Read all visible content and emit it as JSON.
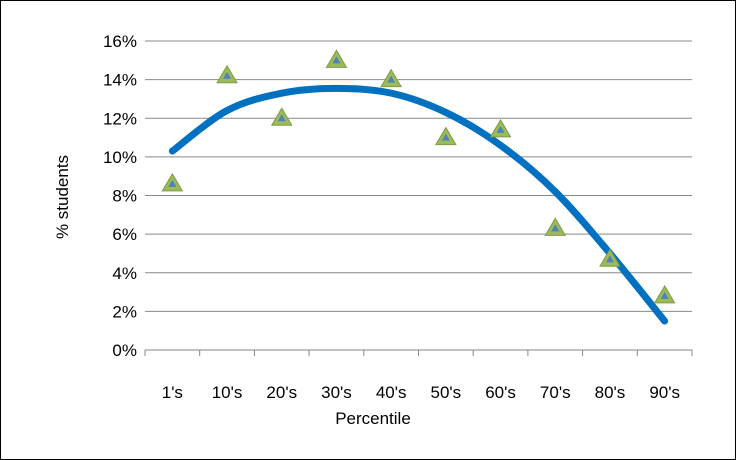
{
  "chart_data": {
    "type": "scatter",
    "title": "",
    "xlabel": "Percentile",
    "ylabel": "% students",
    "categories": [
      "1's",
      "10's",
      "20's",
      "30's",
      "40's",
      "50's",
      "60's",
      "70's",
      "80's",
      "90's"
    ],
    "ylim": [
      0,
      16
    ],
    "yticks": [
      0,
      2,
      4,
      6,
      8,
      10,
      12,
      14,
      16
    ],
    "ytick_labels": [
      "0%",
      "2%",
      "4%",
      "6%",
      "8%",
      "10%",
      "12%",
      "14%",
      "16%"
    ],
    "grid": true,
    "legend": "none",
    "series": [
      {
        "type": "scatter",
        "marker": "triangle",
        "values": [
          8.6,
          14.2,
          12.0,
          15.0,
          14.0,
          11.0,
          11.4,
          6.3,
          4.7,
          2.8
        ],
        "color": "#9BBB59",
        "inner_color": "#4F81BD"
      },
      {
        "type": "line",
        "trend": "polynomial-2",
        "values": [
          10.3,
          12.4,
          13.3,
          13.55,
          13.3,
          12.3,
          10.6,
          8.2,
          5.0,
          1.5
        ],
        "color": "#0070C0"
      }
    ]
  }
}
